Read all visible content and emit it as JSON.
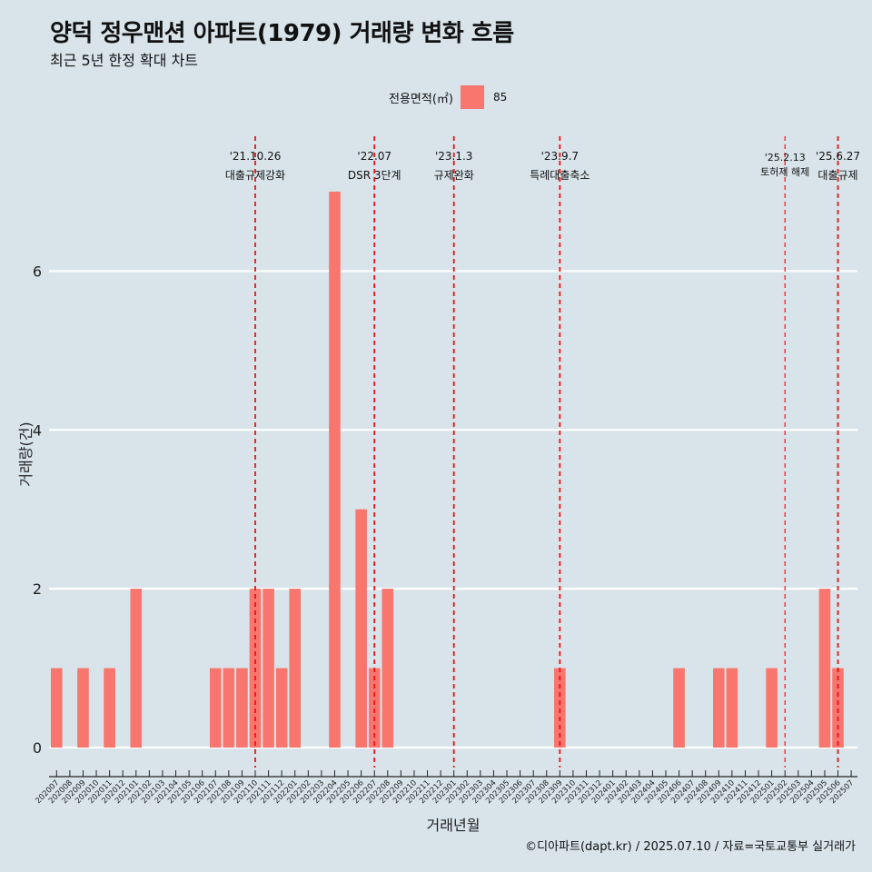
{
  "header": {
    "title": "양덕 정우맨션 아파트(1979) 거래량 변화 흐름",
    "subtitle": "최근 5년 한정 확대 차트"
  },
  "legend": {
    "title": "전용면적(㎡)",
    "entries": [
      {
        "label": "85",
        "color": "#f8766d"
      }
    ]
  },
  "caption": "©디아파트(dapt.kr) / 2025.07.10 / 자료=국토교통부 실거래가",
  "colors": {
    "background": "#d8e4ea",
    "bar": "#f8766d",
    "grid": "#ffffff",
    "event_line": "#ee1111"
  },
  "chart_data": {
    "type": "bar",
    "title": "양덕 정우맨션 아파트(1979) 거래량 변화 흐름",
    "subtitle": "최근 5년 한정 확대 차트",
    "xlabel": "거래년월",
    "ylabel": "거래량(건)",
    "ylim": [
      0,
      7
    ],
    "yticks": [
      0,
      2,
      4,
      6
    ],
    "grid": true,
    "legend_position": "top",
    "categories": [
      "202007",
      "202008",
      "202009",
      "202010",
      "202011",
      "202012",
      "202101",
      "202102",
      "202103",
      "202104",
      "202105",
      "202106",
      "202107",
      "202108",
      "202109",
      "202110",
      "202111",
      "202112",
      "202201",
      "202202",
      "202203",
      "202204",
      "202205",
      "202206",
      "202207",
      "202208",
      "202209",
      "202210",
      "202211",
      "202212",
      "202301",
      "202302",
      "202303",
      "202304",
      "202305",
      "202306",
      "202307",
      "202308",
      "202309",
      "202310",
      "202311",
      "202312",
      "202401",
      "202402",
      "202403",
      "202404",
      "202405",
      "202406",
      "202407",
      "202408",
      "202409",
      "202410",
      "202411",
      "202412",
      "202501",
      "202502",
      "202503",
      "202504",
      "202505",
      "202506",
      "202507"
    ],
    "series": [
      {
        "name": "85",
        "values": [
          1,
          0,
          1,
          0,
          1,
          0,
          2,
          0,
          0,
          0,
          0,
          0,
          1,
          1,
          1,
          2,
          2,
          1,
          2,
          0,
          0,
          7,
          0,
          3,
          1,
          2,
          0,
          0,
          0,
          0,
          0,
          0,
          0,
          0,
          0,
          0,
          0,
          0,
          1,
          0,
          0,
          0,
          0,
          0,
          0,
          0,
          0,
          1,
          0,
          0,
          1,
          1,
          0,
          0,
          1,
          0,
          0,
          0,
          2,
          1,
          0
        ]
      }
    ],
    "annotations": [
      {
        "date": "'21.10.26",
        "label": "대출규제강화",
        "month": "202110",
        "small": false
      },
      {
        "date": "'22.07",
        "label": "DSR 3단계",
        "month": "202207",
        "small": false
      },
      {
        "date": "'23.1.3",
        "label": "규제완화",
        "month": "202301",
        "small": false
      },
      {
        "date": "'23.9.7",
        "label": "특례대출축소",
        "month": "202309",
        "small": false
      },
      {
        "date": "'25.2.13",
        "label": "토허제 해제",
        "month": "202502",
        "small": true
      },
      {
        "date": "'25.6.27",
        "label": "대출규제",
        "month": "202506",
        "small": false
      }
    ]
  }
}
